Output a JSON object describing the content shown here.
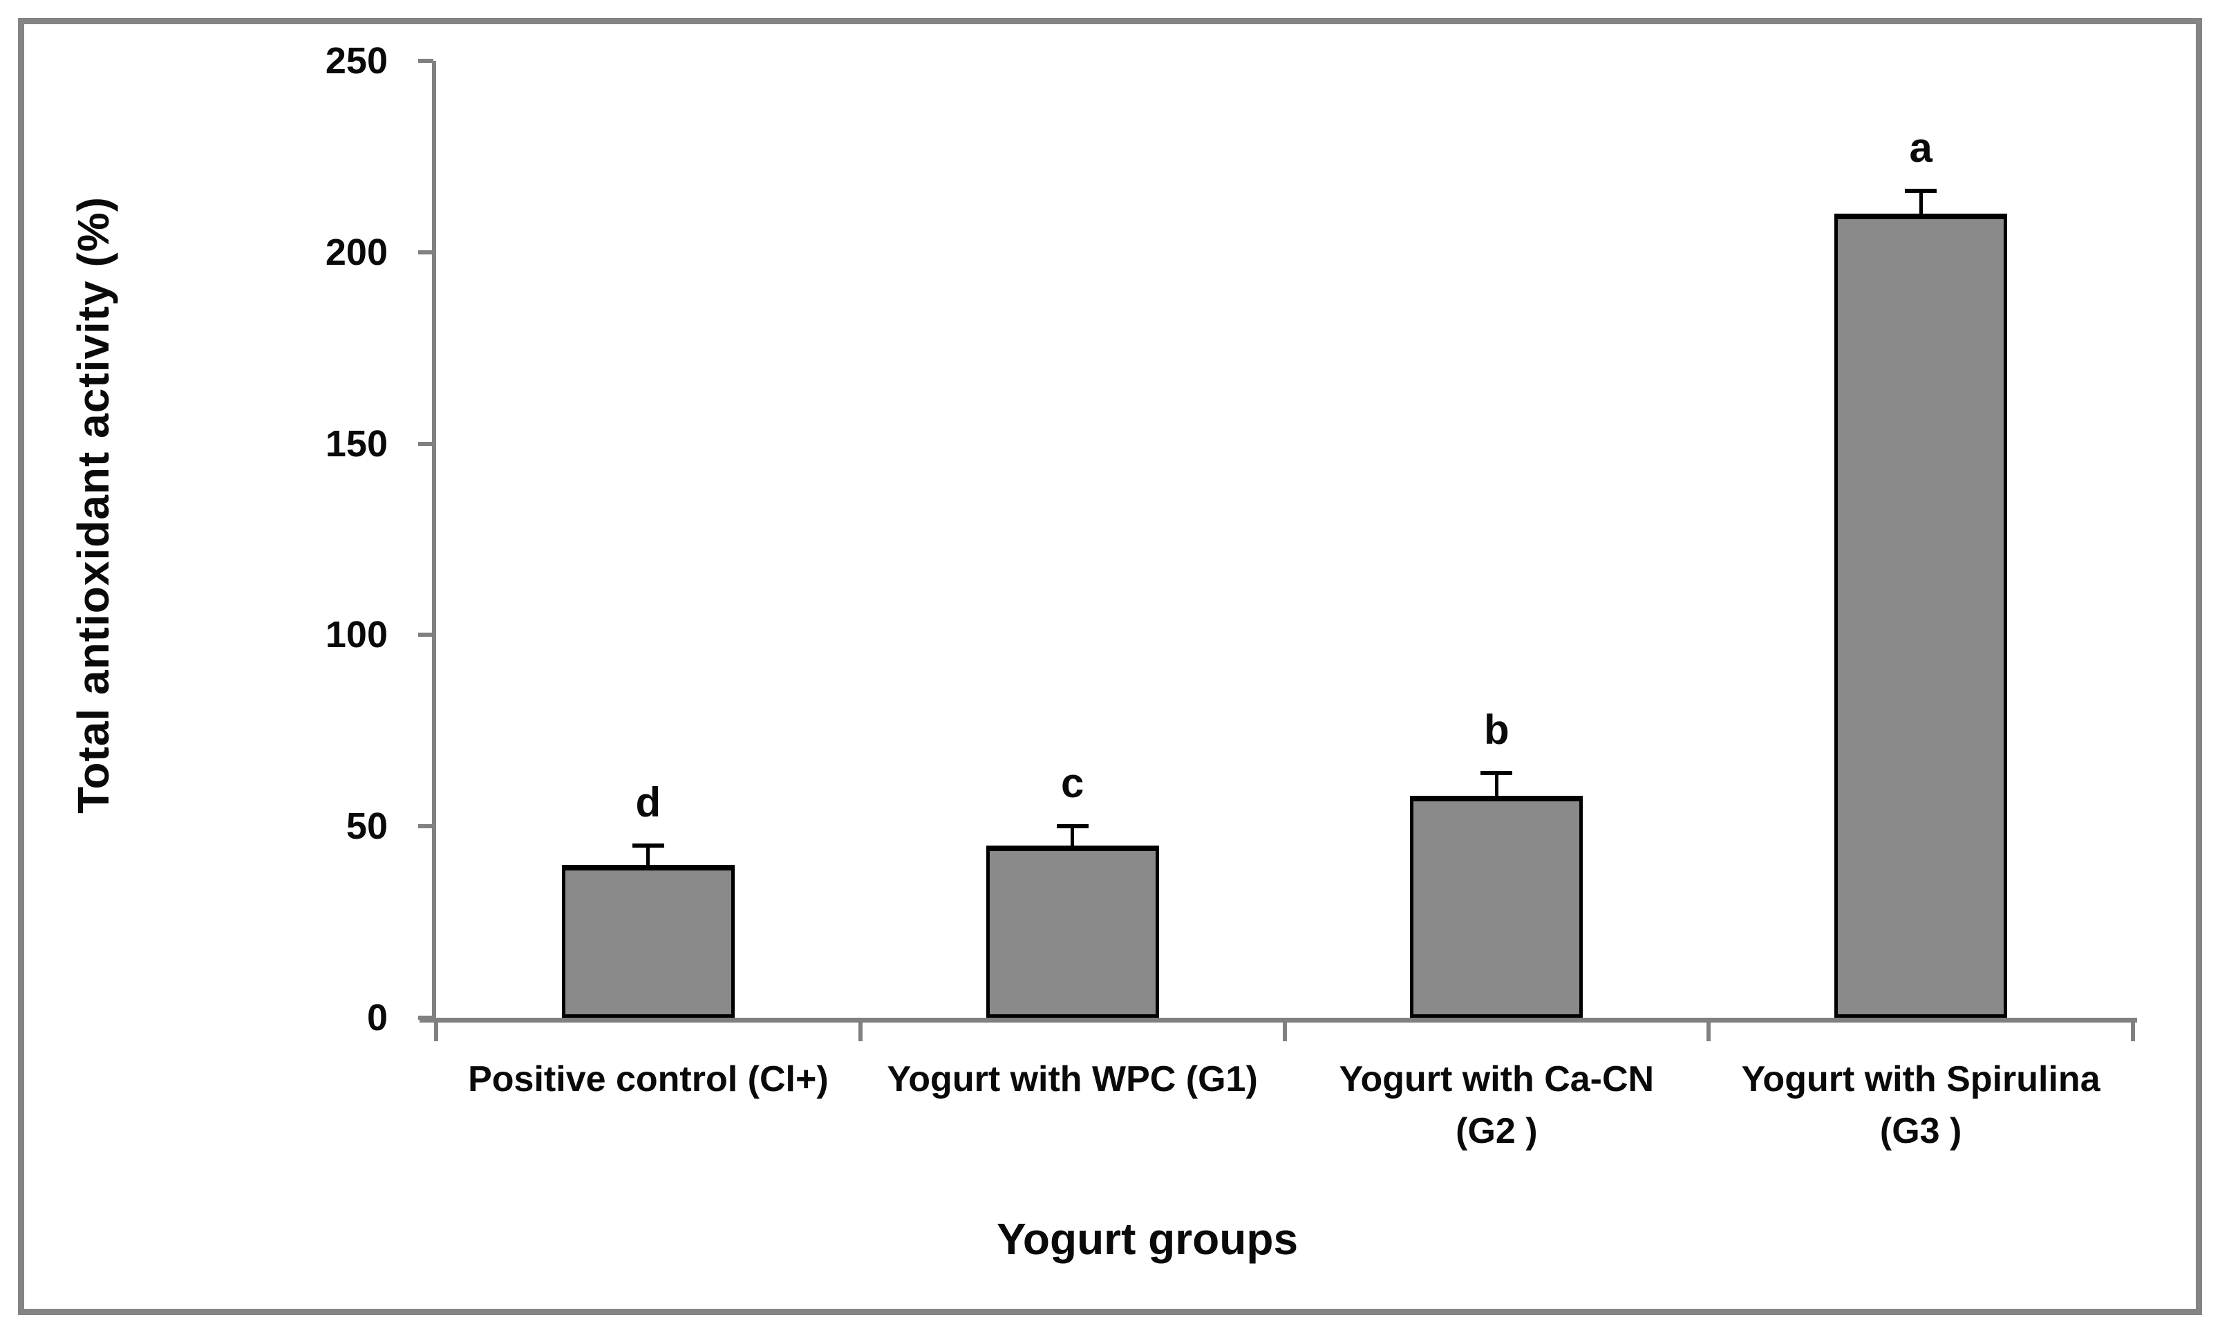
{
  "chart_data": {
    "type": "bar",
    "title": "",
    "xlabel": "Yogurt groups",
    "ylabel": "Total antioxidant activity (%)",
    "categories": [
      "Positive control (Cl+)",
      "Yogurt with WPC (G1)",
      "Yogurt with Ca-CN (G2 )",
      "Yogurt with Spirulina (G3 )"
    ],
    "category_label_lines": [
      [
        "Positive control (Cl+)"
      ],
      [
        "Yogurt with WPC (G1)"
      ],
      [
        "Yogurt with Ca-CN",
        "(G2 )"
      ],
      [
        "Yogurt with Spirulina",
        "(G3 )"
      ]
    ],
    "values": [
      40,
      45,
      58,
      210
    ],
    "error_plus": [
      5,
      5,
      6,
      6
    ],
    "sig_letters": [
      "d",
      "c",
      "b",
      "a"
    ],
    "ylim": [
      0,
      250
    ],
    "yticks": [
      0,
      50,
      100,
      150,
      200,
      250
    ],
    "grid": false,
    "legend_position": "none",
    "bar_fill_color": "#8a8a8a",
    "bar_border_color": "#000000",
    "axis_color": "#808080",
    "frame_color": "#848484",
    "text_color": "#0a0a0a"
  }
}
